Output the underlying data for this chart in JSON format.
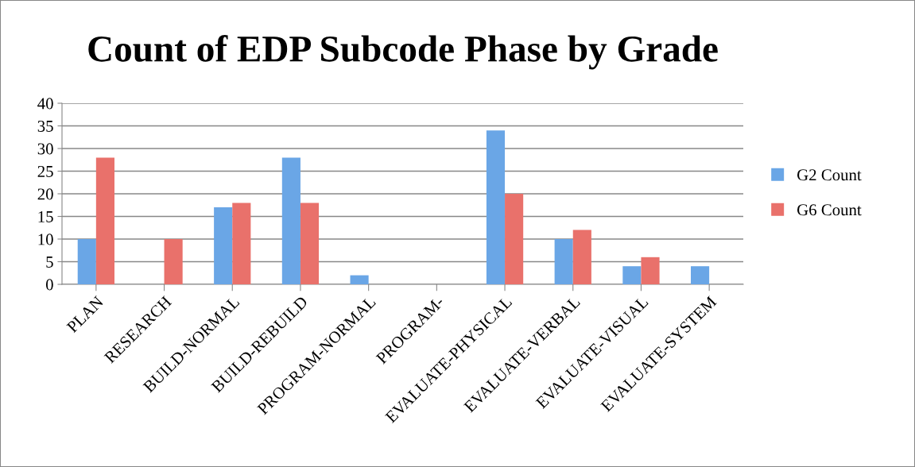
{
  "chart_data": {
    "type": "bar",
    "title": "Count of EDP Subcode Phase by Grade",
    "categories": [
      "PLAN",
      "RESEARCH",
      "BUILD-NORMAL",
      "BUILD-REBUILD",
      "PROGRAM-NORMAL",
      "PROGRAM-",
      "EVALUATE-PHYSICAL",
      "EVALUATE-VERBAL",
      "EVALUATE-VISUAL",
      "EVALUATE-SYSTEM"
    ],
    "series": [
      {
        "name": "G2 Count",
        "color": "#6aa6e6",
        "values": [
          10,
          0,
          17,
          28,
          2,
          0,
          34,
          10,
          4,
          4
        ]
      },
      {
        "name": "G6 Count",
        "color": "#e9716b",
        "values": [
          28,
          10,
          18,
          18,
          0,
          0,
          20,
          12,
          6,
          0
        ]
      }
    ],
    "ylim": [
      0,
      40
    ],
    "yticks": [
      0,
      5,
      10,
      15,
      20,
      25,
      30,
      35,
      40
    ],
    "grid": "y",
    "legend": "right"
  }
}
